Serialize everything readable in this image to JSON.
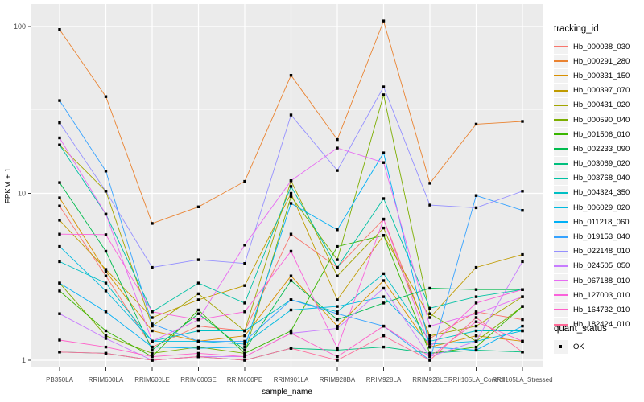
{
  "axes": {
    "x_title": "sample_name",
    "y_title": "FPKM + 1",
    "y_ticks": [
      1,
      10,
      100
    ],
    "y_scale": "log10",
    "y_range": [
      0.74,
      140
    ]
  },
  "legend": {
    "tracking_title": "tracking_id",
    "quant_title": "quant_status",
    "quant_ok_label": "OK"
  },
  "chart_data": {
    "type": "line",
    "title": "",
    "xlabel": "sample_name",
    "ylabel": "FPKM + 1",
    "y_scale": "log10",
    "ylim": [
      0.74,
      140
    ],
    "grid": "major-and-minor",
    "legend_position": "right",
    "point_marker": "black-square",
    "categories": [
      "PB350LA",
      "RRIM600LA",
      "RRIM600LE",
      "RRIM600SE",
      "RRIM600PE",
      "RRIM901LA",
      "RRIM928BA",
      "RRIM928LA",
      "RRIM928LE",
      "RRII105LA_Control",
      "RRII105LA_Stressed"
    ],
    "series": [
      {
        "name": "Hb_000038_030",
        "color": "#F8766D",
        "values": [
          8.4,
          3.2,
          1.2,
          1.6,
          1.5,
          5.7,
          3.6,
          7.0,
          1.35,
          1.95,
          1.75
        ]
      },
      {
        "name": "Hb_000291_280",
        "color": "#EA8331",
        "values": [
          96,
          38,
          6.6,
          8.3,
          11.8,
          51,
          21,
          108,
          11.5,
          26,
          27
        ]
      },
      {
        "name": "Hb_000331_150",
        "color": "#D89000",
        "values": [
          9.4,
          3.4,
          1.5,
          1.3,
          1.4,
          3.2,
          1.6,
          3.0,
          1.2,
          1.4,
          1.3
        ]
      },
      {
        "name": "Hb_000397_070",
        "color": "#C09B00",
        "values": [
          6.9,
          3.5,
          1.8,
          2.3,
          2.8,
          10,
          2.3,
          5.6,
          1.8,
          3.6,
          4.3
        ]
      },
      {
        "name": "Hb_000431_020",
        "color": "#A3A500",
        "values": [
          19.5,
          10.3,
          1.6,
          2.5,
          1.5,
          11.9,
          3.2,
          6.2,
          1.4,
          1.6,
          2.4
        ]
      },
      {
        "name": "Hb_000590_040",
        "color": "#7CAE00",
        "values": [
          2.9,
          1.4,
          1.1,
          1.2,
          1.1,
          9.6,
          4.0,
          39,
          1.9,
          1.3,
          2.1
        ]
      },
      {
        "name": "Hb_001506_010",
        "color": "#39B600",
        "values": [
          2.6,
          1.5,
          1.05,
          2.0,
          1.1,
          1.5,
          4.8,
          5.6,
          1.1,
          1.2,
          2.1
        ]
      },
      {
        "name": "Hb_002233_090",
        "color": "#00BB4E",
        "values": [
          11.6,
          4.5,
          1.15,
          1.9,
          1.15,
          3.0,
          1.75,
          2.2,
          2.7,
          2.65,
          2.65
        ]
      },
      {
        "name": "Hb_003069_020",
        "color": "#00BF7D",
        "values": [
          1.12,
          1.1,
          1.0,
          1.05,
          1.0,
          1.18,
          1.15,
          1.2,
          1.1,
          1.15,
          1.12
        ]
      },
      {
        "name": "Hb_003768_040",
        "color": "#00C1A3",
        "values": [
          19.5,
          7.5,
          1.95,
          2.9,
          2.2,
          11,
          3.6,
          9.3,
          2.05,
          2.4,
          2.65
        ]
      },
      {
        "name": "Hb_004324_350",
        "color": "#00BFC4",
        "values": [
          3.9,
          2.9,
          1.3,
          1.5,
          1.5,
          2.3,
          1.95,
          3.3,
          1.3,
          1.5,
          1.5
        ]
      },
      {
        "name": "Hb_006029_020",
        "color": "#00BAE0",
        "values": [
          4.8,
          2.6,
          1.3,
          1.3,
          1.25,
          2.0,
          2.1,
          2.4,
          1.25,
          1.3,
          1.5
        ]
      },
      {
        "name": "Hb_011218_060",
        "color": "#00B0F6",
        "values": [
          2.9,
          1.95,
          1.2,
          1.18,
          1.2,
          8.7,
          6.05,
          17.5,
          1.2,
          1.15,
          1.6
        ]
      },
      {
        "name": "Hb_019153_040",
        "color": "#35A2FF",
        "values": [
          36,
          13.6,
          1.65,
          1.3,
          1.3,
          2.3,
          1.9,
          1.6,
          1.0,
          9.7,
          7.9
        ]
      },
      {
        "name": "Hb_022148_010",
        "color": "#9590FF",
        "values": [
          26.5,
          10.3,
          3.6,
          4.0,
          3.8,
          29.5,
          13.7,
          43.5,
          8.5,
          8.2,
          10.3
        ]
      },
      {
        "name": "Hb_024505_050",
        "color": "#C77CFF",
        "values": [
          1.9,
          1.35,
          1.0,
          1.05,
          1.05,
          1.45,
          1.55,
          2.7,
          1.05,
          1.3,
          3.9
        ]
      },
      {
        "name": "Hb_067188_010",
        "color": "#E76BF3",
        "values": [
          21.5,
          7.5,
          1.3,
          1.75,
          4.9,
          11.9,
          18.7,
          15.3,
          1.6,
          1.9,
          2.4
        ]
      },
      {
        "name": "Hb_127003_010",
        "color": "#FA62DB",
        "values": [
          5.7,
          5.65,
          1.95,
          1.75,
          1.95,
          4.5,
          1.18,
          7.0,
          1.2,
          2.2,
          2.65
        ]
      },
      {
        "name": "Hb_164732_010",
        "color": "#FF61C9",
        "values": [
          1.32,
          1.2,
          1.05,
          1.1,
          1.05,
          1.45,
          1.05,
          1.6,
          1.05,
          1.7,
          1.3
        ]
      },
      {
        "name": "Hb_182424_010",
        "color": "#FF6A98",
        "values": [
          1.12,
          1.1,
          1.0,
          1.05,
          1.0,
          1.18,
          1.0,
          1.4,
          1.0,
          1.8,
          1.12
        ]
      }
    ]
  },
  "style": {
    "panel_bg": "#EBEBEB",
    "grid_color": "#FFFFFF",
    "tick_label_color": "#4D4D4D",
    "axis_title_color": "#000000",
    "point_color": "#000000"
  }
}
